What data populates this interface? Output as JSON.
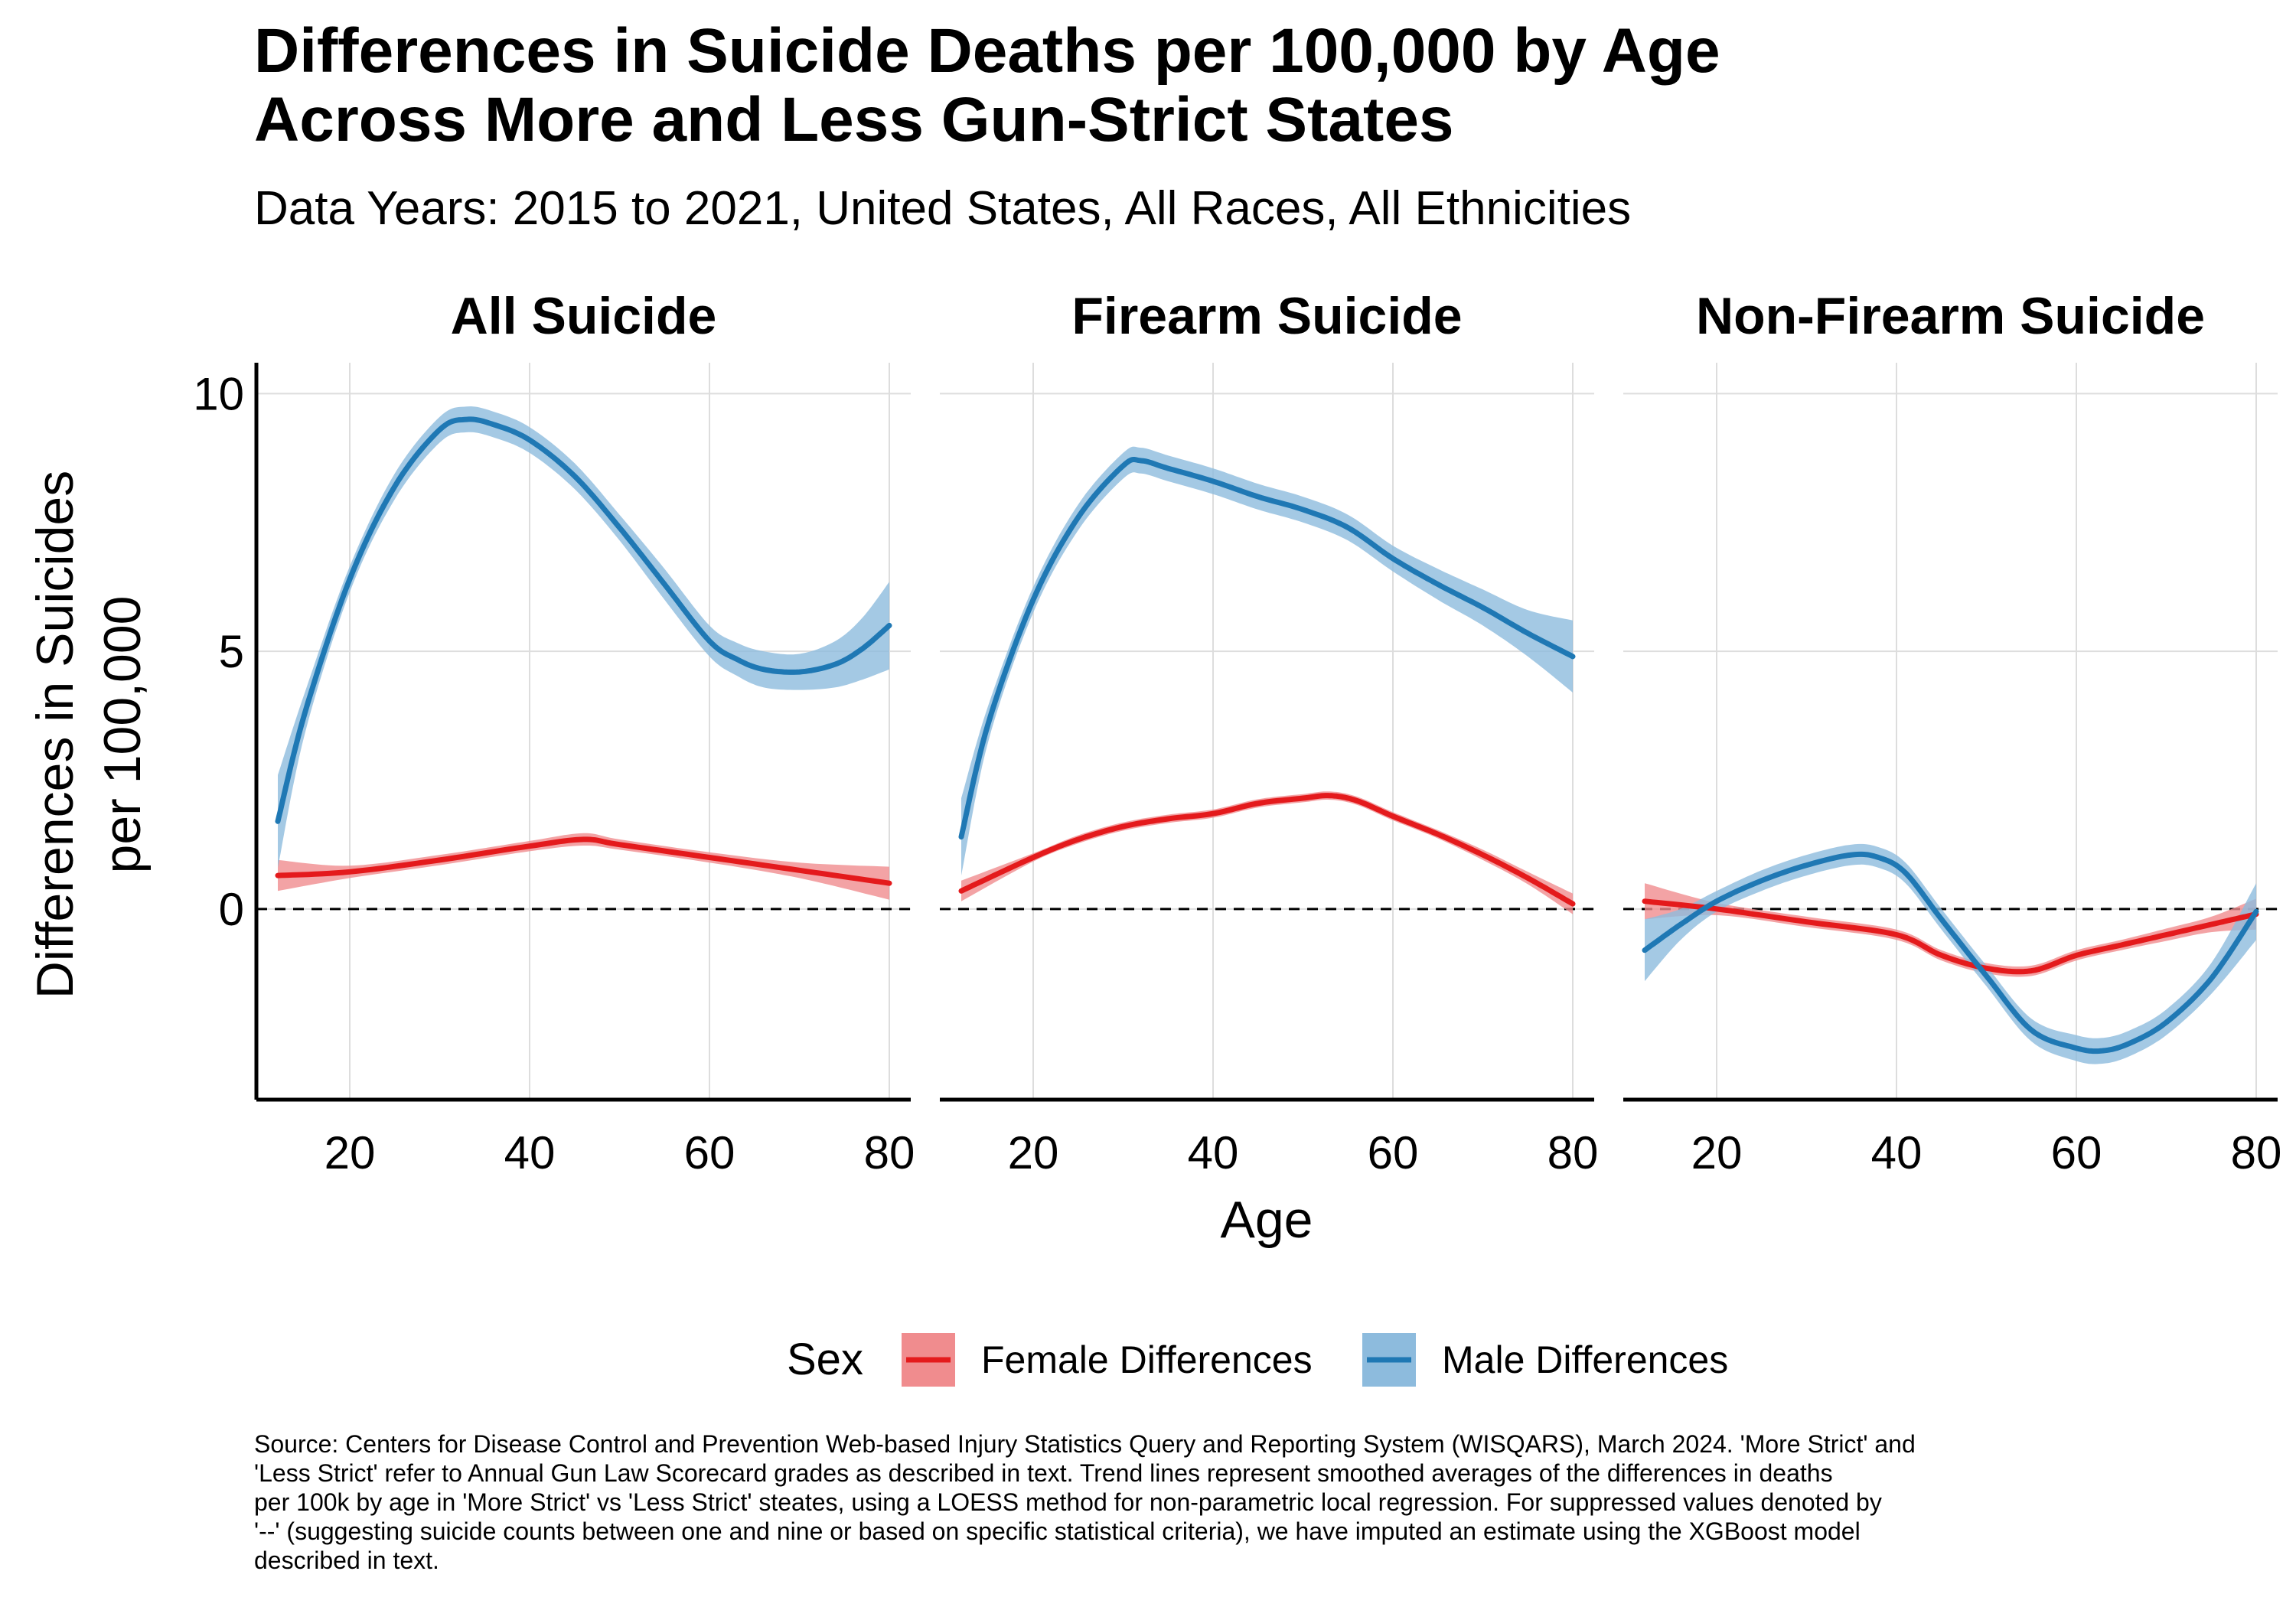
{
  "header": {
    "title_lines": [
      "Differences in Suicide Deaths per 100,000 by Age",
      "Across More and Less Gun-Strict States"
    ],
    "subtitle": "Data Years: 2015 to 2021, United States, All Races, All Ethnicities"
  },
  "caption_lines": [
    "Source: Centers for Disease Control and Prevention Web-based Injury Statistics Query and Reporting System (WISQARS), March 2024. 'More Strict' and",
    "'Less Strict' refer to Annual Gun Law Scorecard grades as described in text. Trend lines represent smoothed averages of the differences in deaths",
    "per 100k by age in 'More Strict' vs 'Less Strict' steates, using a LOESS method for non-parametric local regression. For suppressed values denoted by",
    "'--' (suggesting suicide counts between one and nine or based on specific statistical criteria), we have imputed an estimate using the XGBoost model",
    "described in text."
  ],
  "colors": {
    "female": "#e41a1c",
    "female_band": "#f08c8e",
    "male": "#1f78b4",
    "male_band": "#8dbbdd",
    "grid": "#dddddd",
    "axis": "#000000"
  },
  "chart_data": {
    "type": "line",
    "xlabel": "Age",
    "ylabel": "Differences in Suicides per 100,000",
    "ylabel_lines": [
      "Differences in Suicides",
      "per 100,000"
    ],
    "xlim": [
      12,
      80
    ],
    "ylim": [
      -3.7,
      10.6
    ],
    "x_ticks": [
      20,
      40,
      60,
      80
    ],
    "y_ticks": [
      0,
      5,
      10
    ],
    "reference_line": 0,
    "legend": {
      "title": "Sex",
      "position": "bottom",
      "items": [
        {
          "key": "female",
          "label": "Female Differences"
        },
        {
          "key": "male",
          "label": "Male Differences"
        }
      ]
    },
    "panels": [
      {
        "title": "All Suicide",
        "series": [
          {
            "name": "Female Differences",
            "key": "female",
            "x": [
              12,
              20,
              30,
              40,
              46,
              50,
              60,
              70,
              80
            ],
            "y": [
              0.65,
              0.72,
              0.95,
              1.22,
              1.35,
              1.25,
              1.0,
              0.75,
              0.5
            ],
            "band": [
              0.3,
              0.12,
              0.1,
              0.1,
              0.12,
              0.1,
              0.1,
              0.15,
              0.32
            ]
          },
          {
            "name": "Male Differences",
            "key": "male",
            "x": [
              12,
              15,
              20,
              25,
              30,
              33,
              36,
              40,
              45,
              50,
              55,
              60,
              63,
              66,
              70,
              74,
              77,
              80
            ],
            "y": [
              1.7,
              3.8,
              6.4,
              8.2,
              9.3,
              9.5,
              9.4,
              9.1,
              8.4,
              7.4,
              6.3,
              5.2,
              4.85,
              4.65,
              4.6,
              4.75,
              5.05,
              5.5
            ],
            "band": [
              0.9,
              0.4,
              0.25,
              0.25,
              0.25,
              0.25,
              0.25,
              0.25,
              0.25,
              0.25,
              0.3,
              0.3,
              0.32,
              0.35,
              0.35,
              0.45,
              0.6,
              0.85
            ]
          }
        ]
      },
      {
        "title": "Firearm Suicide",
        "series": [
          {
            "name": "Female Differences",
            "key": "female",
            "x": [
              12,
              20,
              25,
              30,
              35,
              40,
              45,
              50,
              53,
              56,
              60,
              65,
              70,
              75,
              80
            ],
            "y": [
              0.35,
              1.0,
              1.35,
              1.6,
              1.75,
              1.85,
              2.05,
              2.15,
              2.2,
              2.1,
              1.8,
              1.45,
              1.05,
              0.6,
              0.1
            ],
            "band": [
              0.2,
              0.08,
              0.08,
              0.08,
              0.08,
              0.08,
              0.08,
              0.08,
              0.08,
              0.08,
              0.08,
              0.08,
              0.1,
              0.12,
              0.2
            ]
          },
          {
            "name": "Male Differences",
            "key": "male",
            "x": [
              12,
              15,
              20,
              25,
              30,
              32,
              35,
              40,
              45,
              50,
              55,
              60,
              65,
              70,
              75,
              80
            ],
            "y": [
              1.4,
              3.6,
              6.0,
              7.6,
              8.6,
              8.7,
              8.55,
              8.3,
              8.0,
              7.75,
              7.4,
              6.8,
              6.3,
              5.85,
              5.35,
              4.9
            ],
            "band": [
              0.75,
              0.35,
              0.25,
              0.25,
              0.25,
              0.25,
              0.25,
              0.25,
              0.25,
              0.25,
              0.25,
              0.25,
              0.3,
              0.35,
              0.45,
              0.7
            ]
          }
        ]
      },
      {
        "title": "Non-Firearm Suicide",
        "series": [
          {
            "name": "Female Differences",
            "key": "female",
            "x": [
              12,
              20,
              30,
              40,
              45,
              50,
              55,
              60,
              65,
              70,
              75,
              80
            ],
            "y": [
              0.15,
              0.0,
              -0.25,
              -0.5,
              -0.9,
              -1.15,
              -1.2,
              -0.9,
              -0.7,
              -0.5,
              -0.3,
              -0.1
            ],
            "band": [
              0.35,
              0.12,
              0.1,
              0.1,
              0.1,
              0.1,
              0.1,
              0.1,
              0.1,
              0.12,
              0.15,
              0.3
            ]
          },
          {
            "name": "Male Differences",
            "key": "male",
            "x": [
              12,
              16,
              20,
              25,
              30,
              35,
              38,
              41,
              45,
              50,
              55,
              60,
              63,
              66,
              70,
              75,
              80
            ],
            "y": [
              -0.8,
              -0.3,
              0.15,
              0.55,
              0.85,
              1.05,
              1.0,
              0.7,
              -0.2,
              -1.3,
              -2.35,
              -2.7,
              -2.75,
              -2.6,
              -2.2,
              -1.35,
              -0.05
            ],
            "band": [
              0.6,
              0.3,
              0.2,
              0.2,
              0.2,
              0.2,
              0.2,
              0.2,
              0.2,
              0.2,
              0.22,
              0.25,
              0.25,
              0.25,
              0.25,
              0.3,
              0.55
            ]
          }
        ]
      }
    ]
  }
}
